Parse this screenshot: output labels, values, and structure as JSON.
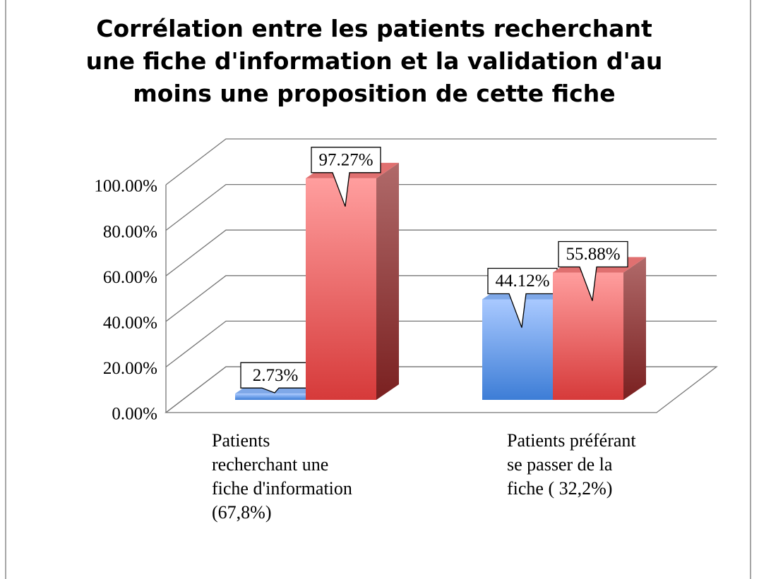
{
  "chart_data": {
    "type": "bar3d",
    "title": "Corrélation entre les patients recherchant une fiche d'information et la validation d'au moins une proposition de cette fiche",
    "categories": [
      "Patients recherchant une fiche d'information (67,8%)",
      "Patients préférant se passer de la fiche ( 32,2%)"
    ],
    "series": [
      {
        "color": "#5b93e8",
        "values": [
          2.73,
          44.12
        ],
        "value_labels": [
          "2.73%",
          "44.12%"
        ]
      },
      {
        "color": "#e04848",
        "values": [
          97.27,
          55.88
        ],
        "value_labels": [
          "97.27%",
          "55.88%"
        ]
      }
    ],
    "ylim": [
      0,
      100
    ],
    "yticks": [
      {
        "value": 0,
        "label": "0.00%"
      },
      {
        "value": 20,
        "label": "20.00%"
      },
      {
        "value": 40,
        "label": "40.00%"
      },
      {
        "value": 60,
        "label": "60.00%"
      },
      {
        "value": 80,
        "label": "80.00%"
      },
      {
        "value": 100,
        "label": "100.00%"
      }
    ],
    "grid": true
  }
}
